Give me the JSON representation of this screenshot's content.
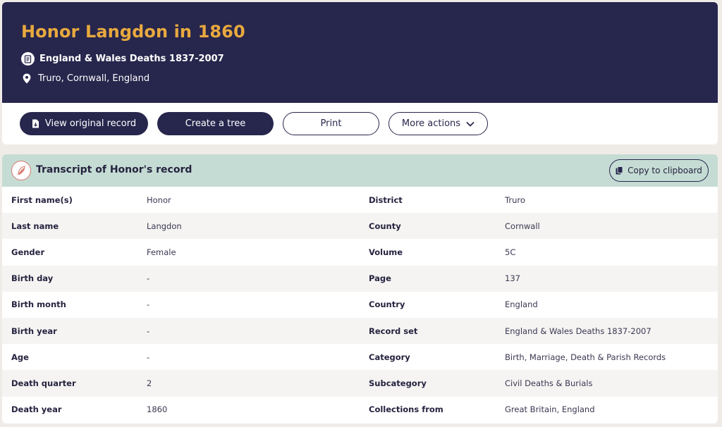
{
  "header": {
    "title": "Honor Langdon in 1860",
    "record_set": "England & Wales Deaths 1837-2007",
    "location": "Truro, Cornwall, England",
    "icons": [
      "document-icon",
      "map-pin-icon"
    ]
  },
  "actions": {
    "view_original": "View original record",
    "create_tree": "Create a tree",
    "print": "Print",
    "more_actions": "More actions"
  },
  "transcript": {
    "title": "Transcript of Honor's record",
    "copy_label": "Copy to clipboard",
    "rows": [
      {
        "l1": "First name(s)",
        "v1": "Honor",
        "l2": "District",
        "v2": "Truro"
      },
      {
        "l1": "Last name",
        "v1": "Langdon",
        "l2": "County",
        "v2": "Cornwall"
      },
      {
        "l1": "Gender",
        "v1": "Female",
        "l2": "Volume",
        "v2": "5C"
      },
      {
        "l1": "Birth day",
        "v1": "-",
        "l2": "Page",
        "v2": "137"
      },
      {
        "l1": "Birth month",
        "v1": "-",
        "l2": "Country",
        "v2": "England"
      },
      {
        "l1": "Birth year",
        "v1": "-",
        "l2": "Record set",
        "v2": "England & Wales Deaths 1837-2007"
      },
      {
        "l1": "Age",
        "v1": "-",
        "l2": "Category",
        "v2": "Birth, Marriage, Death & Parish Records"
      },
      {
        "l1": "Death quarter",
        "v1": "2",
        "l2": "Subcategory",
        "v2": "Civil Deaths & Burials"
      },
      {
        "l1": "Death year",
        "v1": "1860",
        "l2": "Collections from",
        "v2": "Great Britain, England"
      }
    ]
  },
  "colors": {
    "header_bg": "#27264d",
    "title": "#e8a93e",
    "transcript_head_bg": "#c5dcd4",
    "page_bg": "#efece7"
  }
}
